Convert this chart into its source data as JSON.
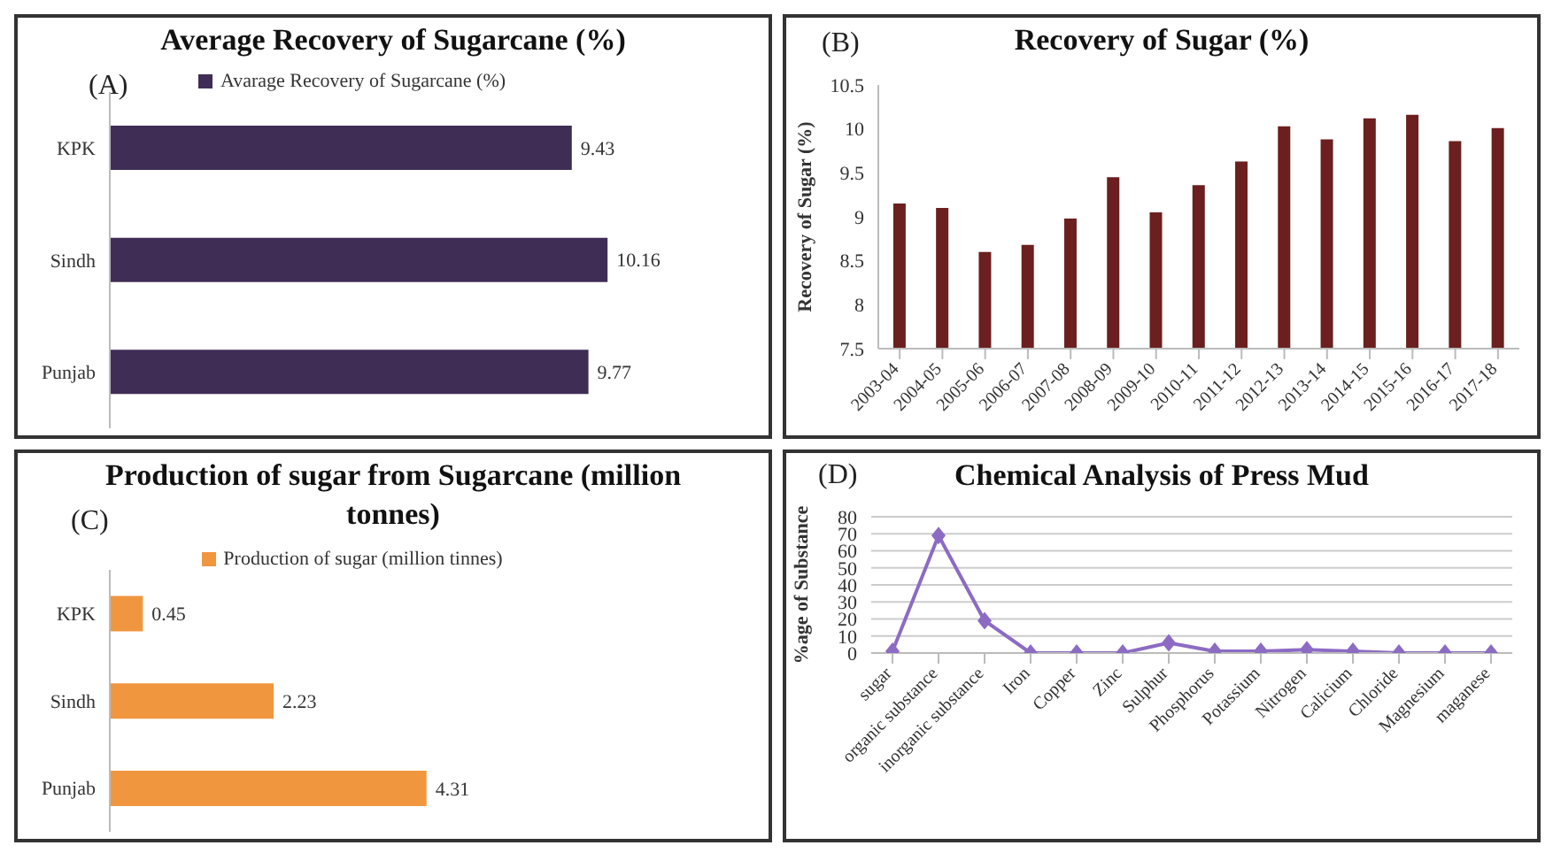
{
  "chart_data": [
    {
      "type": "bar",
      "orientation": "horizontal",
      "title": "Average Recovery of Sugarcane (%)",
      "annotations": [
        "(A)"
      ],
      "categories": [
        "KPK",
        "Sindh",
        "Punjab"
      ],
      "series": [
        {
          "name": "Avarage Recovery of Sugarcane (%)",
          "color": "#3f2d56",
          "values": [
            9.43,
            10.16,
            9.77
          ]
        }
      ],
      "tick_labels": "y",
      "data_labels": true,
      "legend": "top",
      "grid": false
    },
    {
      "type": "bar",
      "title": "Recovery of Sugar (%)",
      "annotations": [
        "(B)"
      ],
      "ylabel": "Recovery of Sugar (%)",
      "categories": [
        "2003-04",
        "2004-05",
        "2005-06",
        "2006-07",
        "2007-08",
        "2008-09",
        "2009-10",
        "2010-11",
        "2011-12",
        "2012-13",
        "2013-14",
        "2014-15",
        "2015-16",
        "2016-17",
        "2017-18"
      ],
      "series": [
        {
          "color": "#6b1f1f",
          "values": [
            9.15,
            9.1,
            8.6,
            8.68,
            8.98,
            9.45,
            9.05,
            9.36,
            9.63,
            10.03,
            9.88,
            10.12,
            10.16,
            9.86,
            10.01
          ]
        }
      ],
      "ylim": [
        7.5,
        10.5
      ],
      "yticks": [
        7.5,
        8,
        8.5,
        9,
        9.5,
        10,
        10.5
      ],
      "grid": false
    },
    {
      "type": "bar",
      "orientation": "horizontal",
      "title": "Production of sugar from Sugarcane (million tonnes)",
      "annotations": [
        "(C)"
      ],
      "categories": [
        "KPK",
        "Sindh",
        "Punjab"
      ],
      "series": [
        {
          "name": "Production of sugar (million tinnes)",
          "color": "#f0963f",
          "values": [
            0.45,
            2.23,
            4.31
          ]
        }
      ],
      "tick_labels": "y",
      "data_labels": true,
      "legend": "top",
      "grid": false
    },
    {
      "type": "line",
      "title": "Chemical Analysis of Press Mud",
      "annotations": [
        "(D)"
      ],
      "ylabel": "%age of Substance",
      "categories": [
        "sugar",
        "organic substance",
        "inorganic substance",
        "Iron",
        "Copper",
        "Zinc",
        "Sulphur",
        "Phosphorus",
        "Potassium",
        "Nitrogen",
        "Calicium",
        "Chloride",
        "Magnesium",
        "maganese"
      ],
      "series": [
        {
          "color": "#8c6bc4",
          "values": [
            1,
            69,
            19,
            0,
            0,
            0,
            6,
            1,
            1,
            2,
            1,
            0,
            0,
            0
          ]
        }
      ],
      "ylim": [
        0,
        80
      ],
      "yticks": [
        0,
        10,
        20,
        30,
        40,
        50,
        60,
        70,
        80
      ],
      "grid": "y",
      "marker": "diamond",
      "line_style": "solid"
    }
  ]
}
